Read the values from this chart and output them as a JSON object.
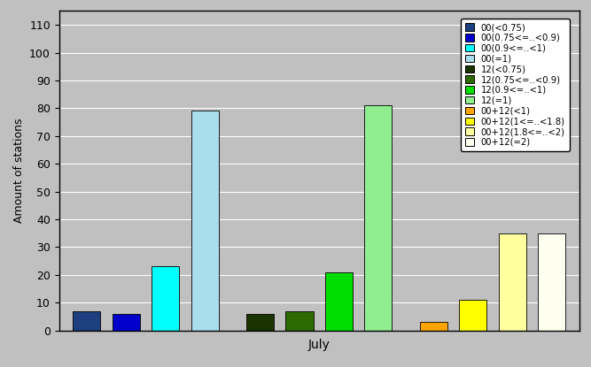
{
  "xlabel": "July",
  "ylabel": "Amount of stations",
  "ylim": [
    0,
    115
  ],
  "yticks": [
    0,
    10,
    20,
    30,
    40,
    50,
    60,
    70,
    80,
    90,
    100,
    110
  ],
  "background_color": "#c0c0c0",
  "plot_area_color": "#c0c0c0",
  "figsize": [
    6.67,
    4.15
  ],
  "dpi": 100,
  "series": [
    {
      "label": "00(<0.75)",
      "color": "#1e3f7f",
      "value": 7
    },
    {
      "label": "00(0.75<=..<0.9)",
      "color": "#0000cc",
      "value": 6
    },
    {
      "label": "00(0.9<=..<1)",
      "color": "#00ffff",
      "value": 23
    },
    {
      "label": "00(=1)",
      "color": "#aaddee",
      "value": 79
    },
    {
      "label": "12(<0.75)",
      "color": "#1a3300",
      "value": 6
    },
    {
      "label": "12(0.75<=..<0.9)",
      "color": "#2d6b00",
      "value": 7
    },
    {
      "label": "12(0.9<=..<1)",
      "color": "#00dd00",
      "value": 21
    },
    {
      "label": "12(=1)",
      "color": "#90ee90",
      "value": 81
    },
    {
      "label": "00+12(<1)",
      "color": "#ffa500",
      "value": 3
    },
    {
      "label": "00+12(1<=..<1.8)",
      "color": "#ffff00",
      "value": 11
    },
    {
      "label": "00+12(1.8<=..<2)",
      "color": "#ffffa0",
      "value": 35
    },
    {
      "label": "00+12(=2)",
      "color": "#fffff0",
      "value": 35
    }
  ],
  "bar_width": 0.7,
  "group_gaps": [
    0,
    0,
    0,
    0.5,
    0,
    0,
    0,
    0.5,
    0,
    0,
    0,
    0
  ],
  "legend_fontsize": 7.2,
  "ylabel_fontsize": 9,
  "xlabel_fontsize": 10,
  "tick_fontsize": 9
}
